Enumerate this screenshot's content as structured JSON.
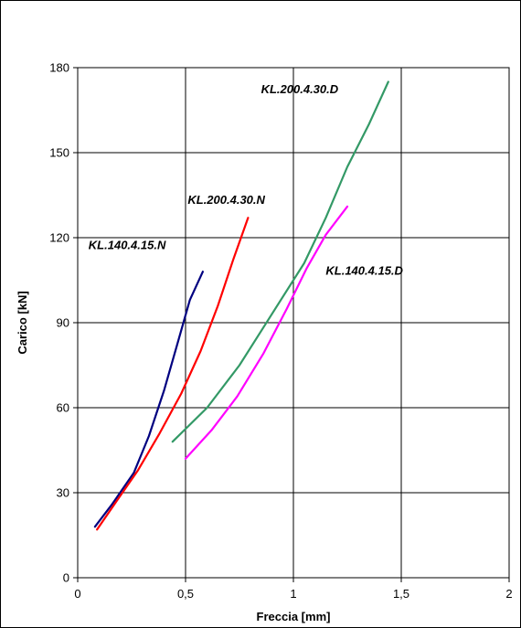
{
  "chart_data": {
    "type": "line",
    "title": "",
    "xlabel": "Freccia [mm]",
    "ylabel": "Carico [kN]",
    "xlim": [
      0,
      2
    ],
    "ylim": [
      0,
      180
    ],
    "x_ticks": [
      0,
      0.5,
      1,
      1.5,
      2
    ],
    "x_tick_labels": [
      "0",
      "0,5",
      "1",
      "1,5",
      "2"
    ],
    "y_ticks": [
      0,
      30,
      60,
      90,
      120,
      150,
      180
    ],
    "y_tick_labels": [
      "0",
      "30",
      "60",
      "90",
      "120",
      "150",
      "180"
    ],
    "grid": true,
    "series": [
      {
        "name": "KL.140.4.15.N",
        "color": "#000080",
        "points": [
          [
            0.08,
            18
          ],
          [
            0.16,
            26
          ],
          [
            0.26,
            37
          ],
          [
            0.33,
            50
          ],
          [
            0.4,
            66
          ],
          [
            0.46,
            82
          ],
          [
            0.52,
            98
          ],
          [
            0.58,
            108
          ]
        ]
      },
      {
        "name": "KL.200.4.30.N",
        "color": "#ff0000",
        "points": [
          [
            0.09,
            17
          ],
          [
            0.18,
            27
          ],
          [
            0.28,
            38
          ],
          [
            0.38,
            51
          ],
          [
            0.48,
            65
          ],
          [
            0.57,
            80
          ],
          [
            0.65,
            96
          ],
          [
            0.72,
            112
          ],
          [
            0.79,
            127
          ]
        ]
      },
      {
        "name": "KL.200.4.30.D",
        "color": "#339966",
        "points": [
          [
            0.44,
            48
          ],
          [
            0.6,
            60
          ],
          [
            0.75,
            75
          ],
          [
            0.9,
            93
          ],
          [
            1.05,
            111
          ],
          [
            1.15,
            127
          ],
          [
            1.25,
            145
          ],
          [
            1.35,
            160
          ],
          [
            1.44,
            175
          ]
        ]
      },
      {
        "name": "KL.140.4.15.D",
        "color": "#ff00ff",
        "points": [
          [
            0.5,
            42
          ],
          [
            0.62,
            52
          ],
          [
            0.74,
            64
          ],
          [
            0.86,
            79
          ],
          [
            0.97,
            95
          ],
          [
            1.06,
            109
          ],
          [
            1.15,
            121
          ],
          [
            1.25,
            131
          ]
        ]
      }
    ],
    "series_label_positions": [
      {
        "name": "KL.140.4.15.N",
        "x": 0.05,
        "y": 116
      },
      {
        "name": "KL.200.4.30.N",
        "x": 0.51,
        "y": 132
      },
      {
        "name": "KL.200.4.30.D",
        "x": 0.85,
        "y": 171
      },
      {
        "name": "KL.140.4.15.D",
        "x": 1.15,
        "y": 107
      }
    ]
  }
}
